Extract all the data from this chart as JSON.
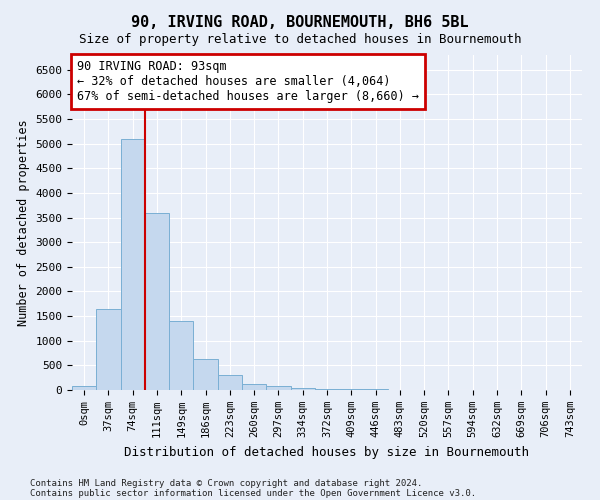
{
  "title": "90, IRVING ROAD, BOURNEMOUTH, BH6 5BL",
  "subtitle": "Size of property relative to detached houses in Bournemouth",
  "xlabel": "Distribution of detached houses by size in Bournemouth",
  "ylabel": "Number of detached properties",
  "bin_labels": [
    "0sqm",
    "37sqm",
    "74sqm",
    "111sqm",
    "149sqm",
    "186sqm",
    "223sqm",
    "260sqm",
    "297sqm",
    "334sqm",
    "372sqm",
    "409sqm",
    "446sqm",
    "483sqm",
    "520sqm",
    "557sqm",
    "594sqm",
    "632sqm",
    "669sqm",
    "706sqm",
    "743sqm"
  ],
  "bar_values": [
    75,
    1650,
    5100,
    3600,
    1400,
    620,
    300,
    130,
    75,
    50,
    30,
    25,
    15,
    10,
    8,
    6,
    5,
    4,
    3,
    3,
    3
  ],
  "bar_color": "#c5d8ee",
  "bar_edgecolor": "#7aafd4",
  "property_line_x": 2.5,
  "property_line_color": "#cc0000",
  "annotation_line1": "90 IRVING ROAD: 93sqm",
  "annotation_line2": "← 32% of detached houses are smaller (4,064)",
  "annotation_line3": "67% of semi-detached houses are larger (8,660) →",
  "annotation_box_edgecolor": "#cc0000",
  "ylim": [
    0,
    6800
  ],
  "yticks": [
    0,
    500,
    1000,
    1500,
    2000,
    2500,
    3000,
    3500,
    4000,
    4500,
    5000,
    5500,
    6000,
    6500
  ],
  "footnote1": "Contains HM Land Registry data © Crown copyright and database right 2024.",
  "footnote2": "Contains public sector information licensed under the Open Government Licence v3.0.",
  "bg_color": "#e8eef8",
  "plot_bg_color": "#e8eef8",
  "grid_color": "#ffffff"
}
